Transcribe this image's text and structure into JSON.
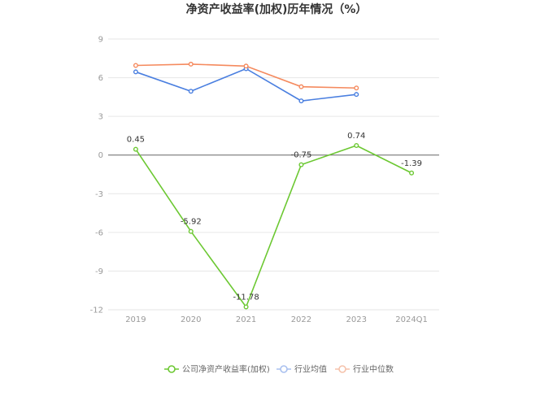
{
  "chart_data": {
    "type": "line",
    "title": "净资产收益率(加权)历年情况（%）",
    "categories": [
      "2019",
      "2020",
      "2021",
      "2022",
      "2023",
      "2024Q1"
    ],
    "ylim": [
      -12,
      9
    ],
    "yticks": [
      "9",
      "6",
      "3",
      "0",
      "-3",
      "-6",
      "-9",
      "-12"
    ],
    "ytick_values": [
      9,
      6,
      3,
      0,
      -3,
      -6,
      -9,
      -12
    ],
    "grid": true,
    "legend_position": "bottom",
    "series": [
      {
        "name": "公司净资产收益率(加权)",
        "color": "#6cc832",
        "values": [
          0.45,
          -5.92,
          -11.78,
          -0.75,
          0.74,
          -1.39
        ],
        "labels": [
          "0.45",
          "-5.92",
          "-11.78",
          "-0.75",
          "0.74",
          "-1.39"
        ]
      },
      {
        "name": "行业均值",
        "color": "#4a7fe0",
        "values": [
          6.45,
          4.95,
          6.7,
          4.2,
          4.7,
          null
        ]
      },
      {
        "name": "行业中位数",
        "color": "#f58a5e",
        "values": [
          6.95,
          7.05,
          6.9,
          5.3,
          5.2,
          null
        ]
      }
    ]
  }
}
